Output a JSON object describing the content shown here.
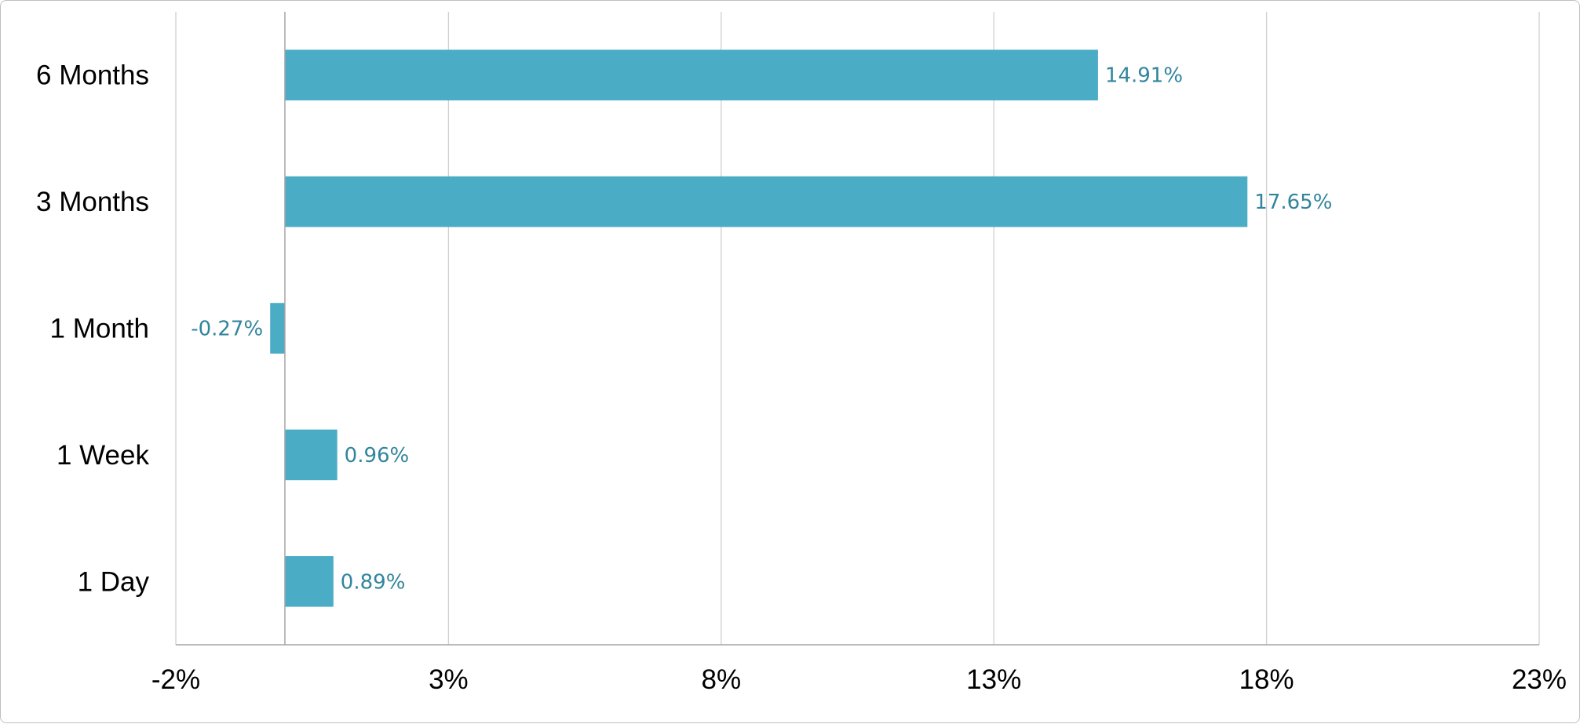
{
  "chart_data": {
    "type": "bar",
    "orientation": "horizontal",
    "categories": [
      "6 Months",
      "3 Months",
      "1 Month",
      "1 Week",
      "1 Day"
    ],
    "values": [
      14.91,
      17.65,
      -0.27,
      0.96,
      0.89
    ],
    "data_labels": [
      "14.91%",
      "17.65%",
      "-0.27%",
      "0.96%",
      "0.89%"
    ],
    "xlim": [
      -2,
      23
    ],
    "xticks": [
      -2,
      3,
      8,
      13,
      18,
      23
    ],
    "xtick_labels": [
      "-2%",
      "3%",
      "8%",
      "13%",
      "18%",
      "23%"
    ],
    "grid": "vertical",
    "legend": "none",
    "colors": {
      "bar": "#4BACC6",
      "data_label": "#31859C"
    }
  }
}
